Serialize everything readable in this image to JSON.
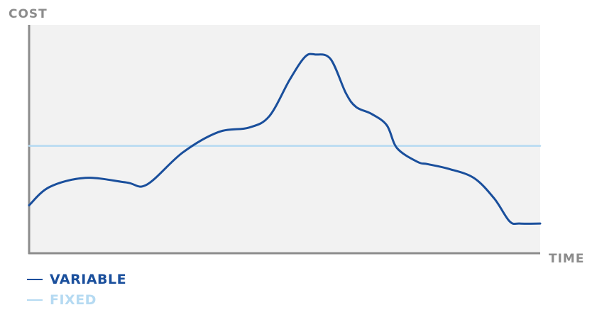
{
  "chart_data": {
    "type": "line",
    "title": "",
    "ylabel": "COST",
    "xlabel": "TIME",
    "x_range": [
      0,
      100
    ],
    "y_range": [
      0,
      100
    ],
    "grid": false,
    "legend_position": "bottom-left",
    "series": [
      {
        "name": "VARIABLE",
        "color": "#1a4f9c",
        "x": [
          0,
          4,
          11,
          19,
          23,
          30,
          37,
          43,
          47,
          51,
          54,
          56,
          59,
          62,
          64,
          67,
          70,
          72,
          76,
          78,
          82,
          87,
          91,
          94,
          96,
          100
        ],
        "y": [
          21,
          29,
          33,
          31,
          30,
          44,
          53,
          55,
          60,
          76,
          86,
          87,
          85,
          70,
          64,
          61,
          56,
          46,
          40,
          39,
          37,
          33,
          24,
          14,
          13,
          13
        ]
      },
      {
        "name": "FIXED",
        "color": "#b5daf2",
        "x": [
          0,
          100
        ],
        "y": [
          47,
          47
        ]
      }
    ]
  }
}
